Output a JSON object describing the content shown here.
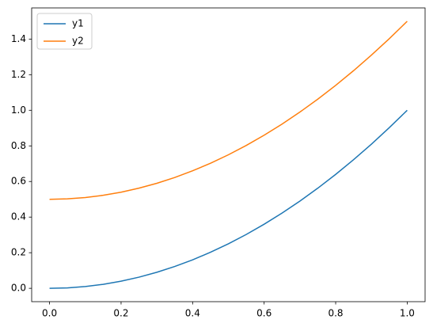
{
  "chart_data": {
    "type": "line",
    "x": [
      0,
      0.05,
      0.1,
      0.15,
      0.2,
      0.25,
      0.3,
      0.35,
      0.4,
      0.45,
      0.5,
      0.55,
      0.6,
      0.65,
      0.7,
      0.75,
      0.8,
      0.85,
      0.9,
      0.95,
      1
    ],
    "series": [
      {
        "name": "y1",
        "color": "#1f77b4",
        "values": [
          0,
          0.0025,
          0.01,
          0.0225,
          0.04,
          0.0625,
          0.09,
          0.1225,
          0.16,
          0.2025,
          0.25,
          0.3025,
          0.36,
          0.4225,
          0.49,
          0.5625,
          0.64,
          0.7225,
          0.81,
          0.9025,
          1
        ]
      },
      {
        "name": "y2",
        "color": "#ff7f0e",
        "values": [
          0.5,
          0.5025,
          0.51,
          0.5225,
          0.54,
          0.5625,
          0.59,
          0.6225,
          0.66,
          0.7025,
          0.75,
          0.8025,
          0.86,
          0.9225,
          0.99,
          1.0625,
          1.14,
          1.2225,
          1.31,
          1.4025,
          1.5
        ]
      }
    ],
    "xlim": [
      -0.05,
      1.05
    ],
    "ylim": [
      -0.075,
      1.575
    ],
    "xticks": [
      {
        "value": 0,
        "label": "0.0"
      },
      {
        "value": 0.2,
        "label": "0.2"
      },
      {
        "value": 0.4,
        "label": "0.4"
      },
      {
        "value": 0.6,
        "label": "0.6"
      },
      {
        "value": 0.8,
        "label": "0.8"
      },
      {
        "value": 1,
        "label": "1.0"
      }
    ],
    "yticks": [
      {
        "value": 0,
        "label": "0.0"
      },
      {
        "value": 0.2,
        "label": "0.2"
      },
      {
        "value": 0.4,
        "label": "0.4"
      },
      {
        "value": 0.6,
        "label": "0.6"
      },
      {
        "value": 0.8,
        "label": "0.8"
      },
      {
        "value": 1,
        "label": "1.0"
      },
      {
        "value": 1.2,
        "label": "1.2"
      },
      {
        "value": 1.4,
        "label": "1.4"
      }
    ],
    "legend": "upper left",
    "grid": false
  }
}
